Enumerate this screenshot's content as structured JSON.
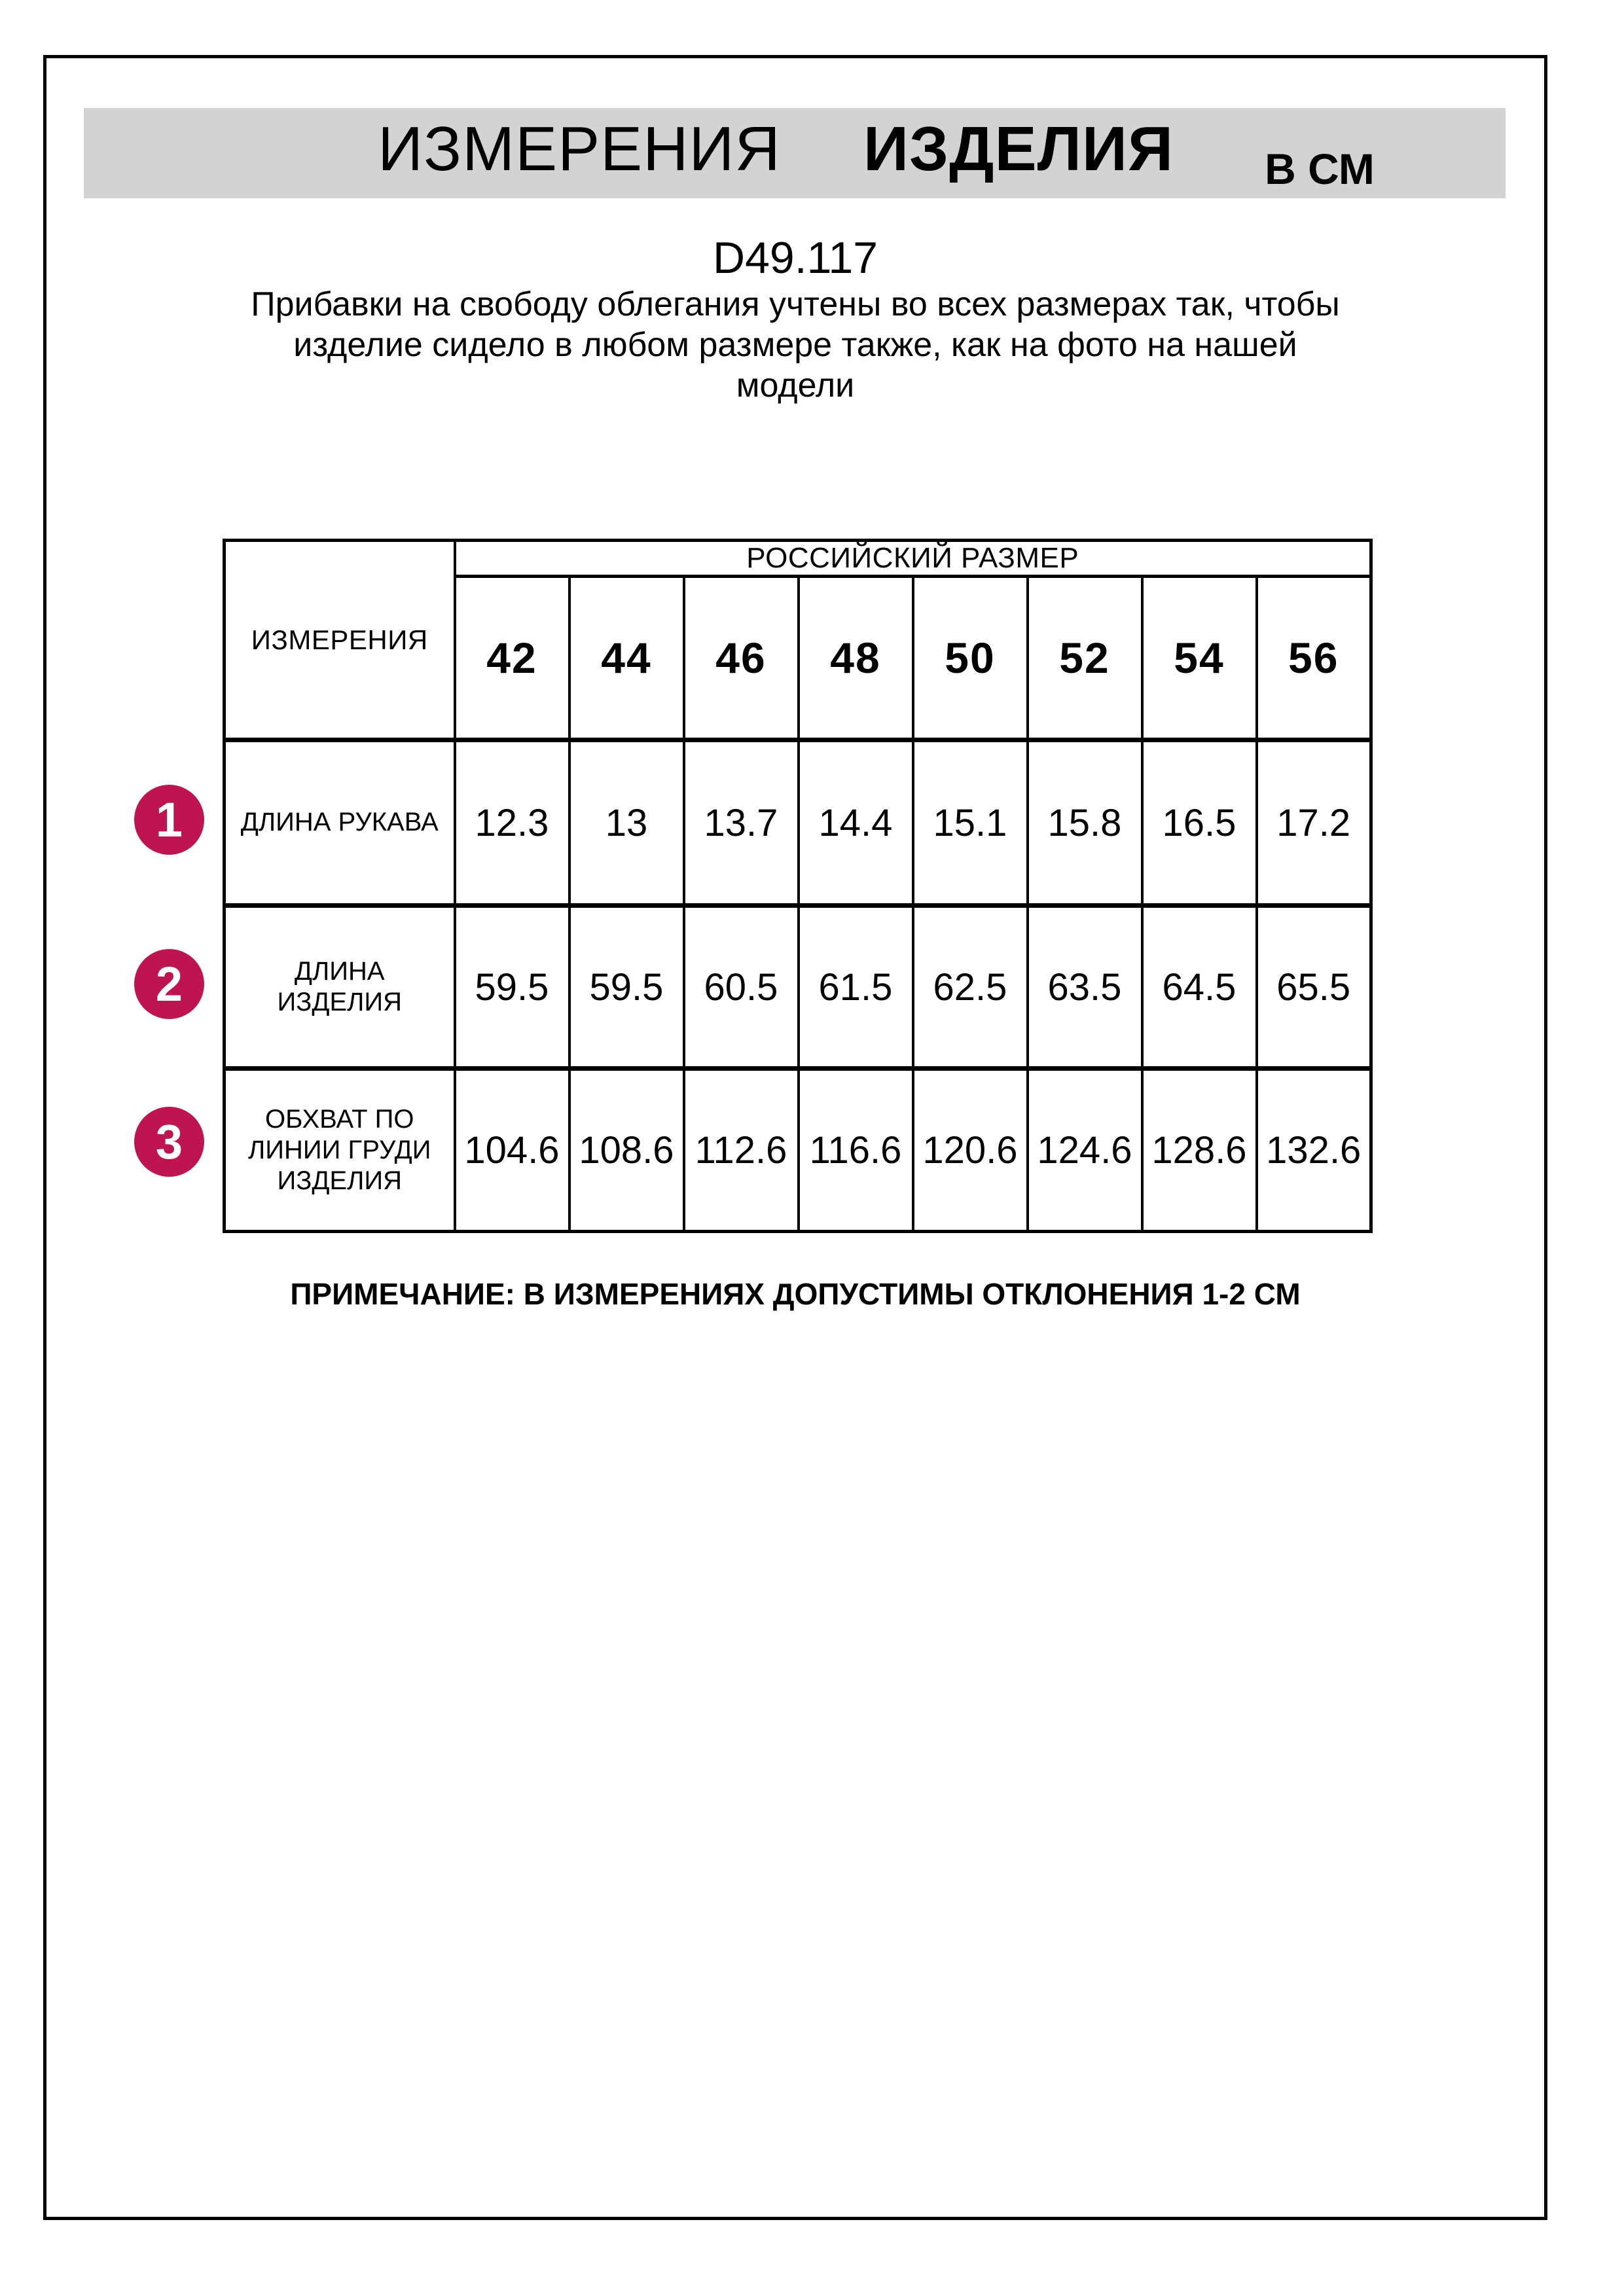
{
  "header": {
    "title_measurements": "ИЗМЕРЕНИЯ",
    "title_product": "ИЗДЕЛИЯ",
    "title_units": "В СМ"
  },
  "model_code": "D49.117",
  "description": "Прибавки на свободу облегания учтены во всех размерах так, чтобы\nизделие сидело в любом размере также, как на фото на нашей\nмодели",
  "size_table": {
    "corner_header": "ИЗМЕРЕНИЯ",
    "group_header": "РОССИЙСКИЙ РАЗМЕР",
    "sizes": [
      "42",
      "44",
      "46",
      "48",
      "50",
      "52",
      "54",
      "56"
    ],
    "rows": [
      {
        "num": "1",
        "label": "ДЛИНА РУКАВА",
        "values": [
          "12.3",
          "13",
          "13.7",
          "14.4",
          "15.1",
          "15.8",
          "16.5",
          "17.2"
        ]
      },
      {
        "num": "2",
        "label": "ДЛИНА\nИЗДЕЛИЯ",
        "values": [
          "59.5",
          "59.5",
          "60.5",
          "61.5",
          "62.5",
          "63.5",
          "64.5",
          "65.5"
        ]
      },
      {
        "num": "3",
        "label": "ОБХВАТ ПО\nЛИНИИ ГРУДИ\nИЗДЕЛИЯ",
        "values": [
          "104.6",
          "108.6",
          "112.6",
          "116.6",
          "120.6",
          "124.6",
          "128.6",
          "132.6"
        ]
      }
    ]
  },
  "note": "ПРИМЕЧАНИЕ: В ИЗМЕРЕНИЯХ ДОПУСТИМЫ ОТКЛОНЕНИЯ 1-2 СМ",
  "colors": {
    "accent_circle": "#be1450",
    "title_bar_bg": "#d3d3d3",
    "border": "#000000"
  }
}
